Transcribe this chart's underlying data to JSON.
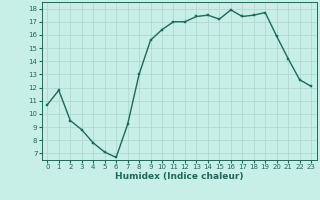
{
  "x": [
    0,
    1,
    2,
    3,
    4,
    5,
    6,
    7,
    8,
    9,
    10,
    11,
    12,
    13,
    14,
    15,
    16,
    17,
    18,
    19,
    20,
    21,
    22,
    23
  ],
  "y": [
    10.7,
    11.8,
    9.5,
    8.8,
    7.8,
    7.1,
    6.7,
    9.2,
    13.0,
    15.6,
    16.4,
    17.0,
    17.0,
    17.4,
    17.5,
    17.2,
    17.9,
    17.4,
    17.5,
    17.7,
    15.9,
    14.2,
    12.6,
    12.1
  ],
  "line_color": "#1a6b5a",
  "marker_color": "#1a6b5a",
  "bg_color": "#c8eee8",
  "grid_color": "#aed4cc",
  "xlabel": "Humidex (Indice chaleur)",
  "xlim": [
    -0.5,
    23.5
  ],
  "ylim": [
    6.5,
    18.5
  ],
  "yticks": [
    7,
    8,
    9,
    10,
    11,
    12,
    13,
    14,
    15,
    16,
    17,
    18
  ],
  "xticks": [
    0,
    1,
    2,
    3,
    4,
    5,
    6,
    7,
    8,
    9,
    10,
    11,
    12,
    13,
    14,
    15,
    16,
    17,
    18,
    19,
    20,
    21,
    22,
    23
  ],
  "xtick_labels": [
    "0",
    "1",
    "2",
    "3",
    "4",
    "5",
    "6",
    "7",
    "8",
    "9",
    "10",
    "11",
    "12",
    "13",
    "14",
    "15",
    "16",
    "17",
    "18",
    "19",
    "20",
    "21",
    "22",
    "23"
  ],
  "label_fontsize": 6.5,
  "tick_fontsize": 5.0,
  "linewidth": 1.0,
  "markersize": 2.0
}
